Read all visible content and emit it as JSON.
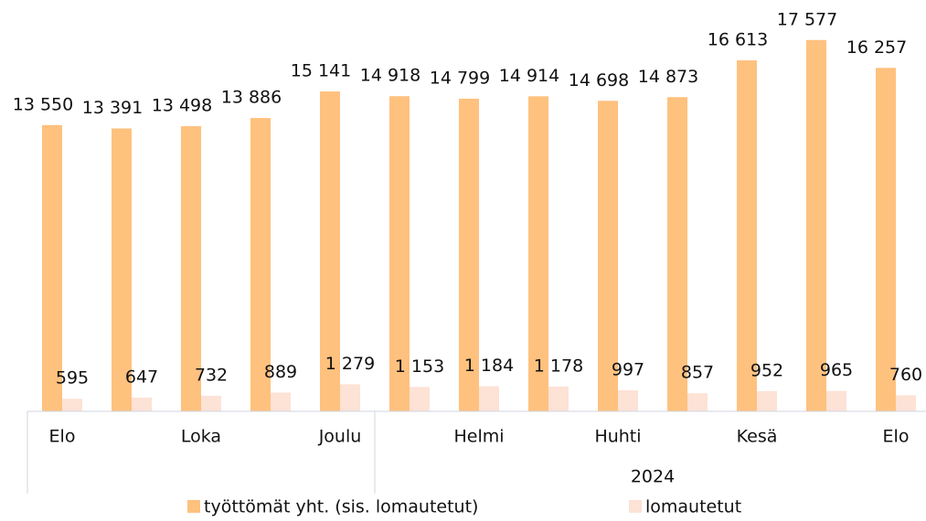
{
  "chart_data": {
    "type": "bar",
    "categories": [
      "Elo",
      null,
      "Loka",
      null,
      "Joulu",
      null,
      "Helmi",
      null,
      "Huhti",
      null,
      "Kesä",
      null,
      "Elo"
    ],
    "x_groups": [
      {
        "label": "2024",
        "from": 5,
        "to": 12
      }
    ],
    "series": [
      {
        "name": "työttömät yht. (sis. lomautetut)",
        "color": "#ffc17e",
        "values": [
          13550,
          13391,
          13498,
          13886,
          15141,
          14918,
          14799,
          14914,
          14698,
          14873,
          16613,
          17577,
          16257
        ],
        "value_labels": [
          "13 550",
          "13 391",
          "13 498",
          "13 886",
          "15 141",
          "14 918",
          "14 799",
          "14 914",
          "14 698",
          "14 873",
          "16 613",
          "17 577",
          "16 257"
        ]
      },
      {
        "name": "lomautetut",
        "color": "#fde2d6",
        "values": [
          595,
          647,
          732,
          889,
          1279,
          1153,
          1184,
          1178,
          997,
          857,
          952,
          965,
          760
        ],
        "value_labels": [
          "595",
          "647",
          "732",
          "889",
          "1 279",
          "1 153",
          "1 184",
          "1 178",
          "997",
          "857",
          "952",
          "965",
          "760"
        ]
      }
    ],
    "ylim": [
      0,
      18000
    ],
    "legend": "bottom"
  }
}
